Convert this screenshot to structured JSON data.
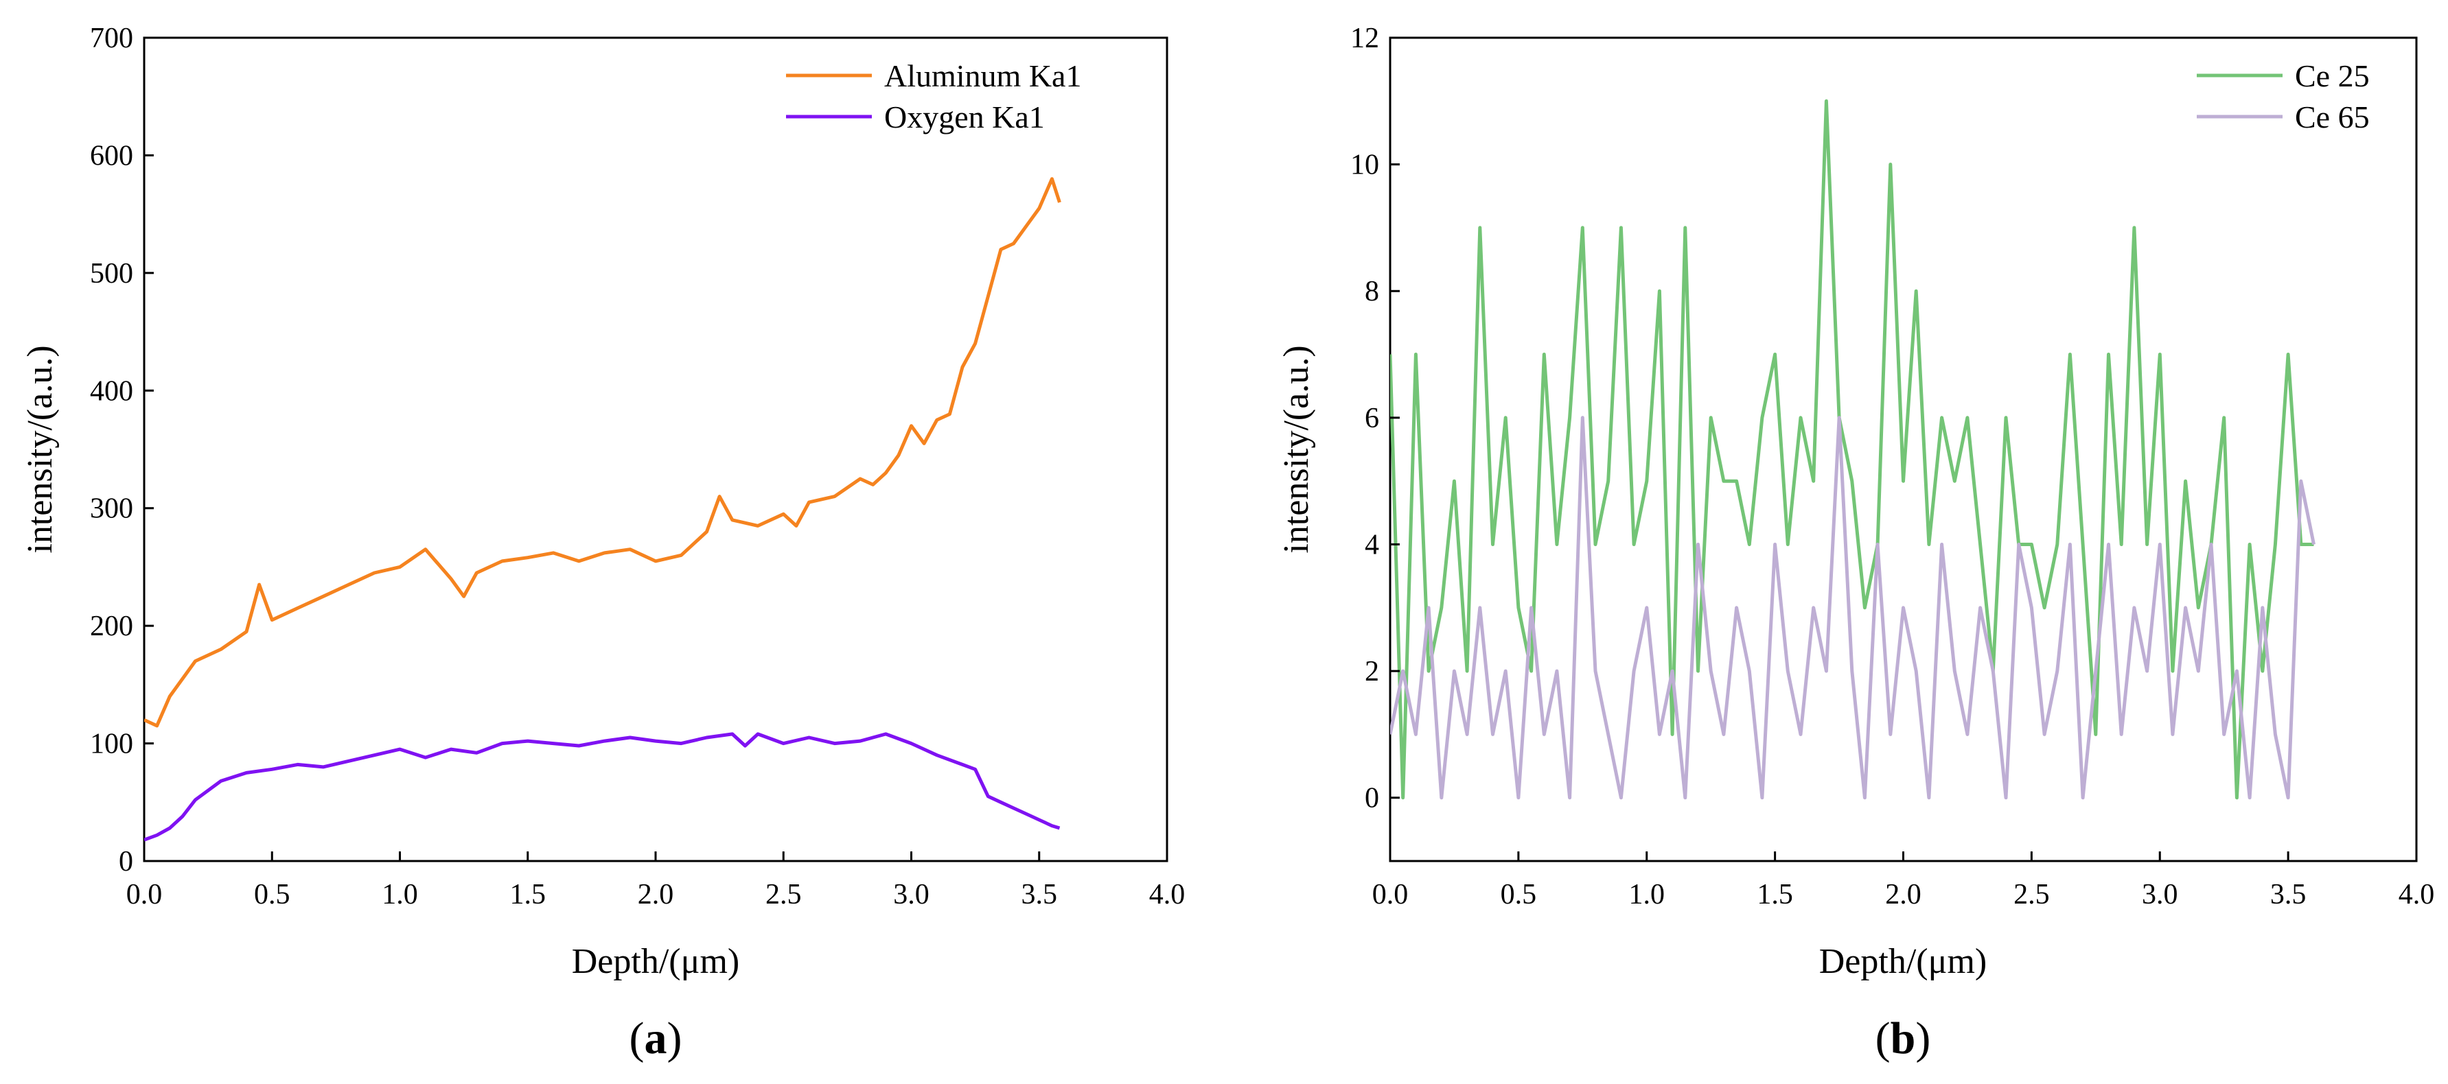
{
  "chart_data": [
    {
      "type": "line",
      "panel_label": {
        "open": "(",
        "letter": "a",
        "close": ")"
      },
      "xlabel": "Depth/(μm)",
      "ylabel": "intensity/(a.u.)",
      "xlim": [
        0,
        4.0
      ],
      "ylim": [
        0,
        700
      ],
      "xticks": [
        0,
        0.5,
        1.0,
        1.5,
        2.0,
        2.5,
        3.0,
        3.5,
        4.0
      ],
      "xtick_labels": [
        "0.0",
        "0.5",
        "1.0",
        "1.5",
        "2.0",
        "2.5",
        "3.0",
        "3.5",
        "4.0"
      ],
      "yticks": [
        0,
        100,
        200,
        300,
        400,
        500,
        600,
        700
      ],
      "ytick_labels": [
        "0",
        "100",
        "200",
        "300",
        "400",
        "500",
        "600",
        "700"
      ],
      "legend_position": "top-right",
      "series": [
        {
          "name": "Aluminum Ka1",
          "color": "#F5831F",
          "x": [
            0.0,
            0.05,
            0.1,
            0.2,
            0.3,
            0.4,
            0.45,
            0.5,
            0.6,
            0.7,
            0.8,
            0.9,
            1.0,
            1.1,
            1.2,
            1.25,
            1.3,
            1.4,
            1.5,
            1.6,
            1.7,
            1.8,
            1.9,
            2.0,
            2.1,
            2.2,
            2.25,
            2.3,
            2.4,
            2.5,
            2.55,
            2.6,
            2.7,
            2.8,
            2.85,
            2.9,
            2.95,
            3.0,
            3.05,
            3.1,
            3.15,
            3.2,
            3.25,
            3.3,
            3.35,
            3.4,
            3.45,
            3.5,
            3.55,
            3.58
          ],
          "values": [
            120,
            115,
            140,
            170,
            180,
            195,
            235,
            205,
            215,
            225,
            235,
            245,
            250,
            265,
            240,
            225,
            245,
            255,
            258,
            262,
            255,
            262,
            265,
            255,
            260,
            280,
            310,
            290,
            285,
            295,
            285,
            305,
            310,
            325,
            320,
            330,
            345,
            370,
            355,
            375,
            380,
            420,
            440,
            480,
            520,
            525,
            540,
            555,
            580,
            560
          ]
        },
        {
          "name": "Oxygen Ka1",
          "color": "#7F12F2",
          "x": [
            0.0,
            0.05,
            0.1,
            0.15,
            0.2,
            0.3,
            0.4,
            0.5,
            0.6,
            0.7,
            0.8,
            0.9,
            1.0,
            1.1,
            1.2,
            1.3,
            1.4,
            1.5,
            1.6,
            1.7,
            1.8,
            1.9,
            2.0,
            2.1,
            2.2,
            2.3,
            2.35,
            2.4,
            2.5,
            2.6,
            2.7,
            2.8,
            2.9,
            3.0,
            3.05,
            3.1,
            3.2,
            3.25,
            3.3,
            3.35,
            3.4,
            3.45,
            3.5,
            3.55,
            3.58
          ],
          "values": [
            18,
            22,
            28,
            38,
            52,
            68,
            75,
            78,
            82,
            80,
            85,
            90,
            95,
            88,
            95,
            92,
            100,
            102,
            100,
            98,
            102,
            105,
            102,
            100,
            105,
            108,
            98,
            108,
            100,
            105,
            100,
            102,
            108,
            100,
            95,
            90,
            82,
            78,
            55,
            50,
            45,
            40,
            35,
            30,
            28
          ]
        }
      ]
    },
    {
      "type": "line",
      "panel_label": {
        "open": "(",
        "letter": "b",
        "close": ")"
      },
      "xlabel": "Depth/(μm)",
      "ylabel": "intensity/(a.u.)",
      "xlim": [
        0,
        4.0
      ],
      "ylim": [
        -1,
        12
      ],
      "xticks": [
        0,
        0.5,
        1.0,
        1.5,
        2.0,
        2.5,
        3.0,
        3.5,
        4.0
      ],
      "xtick_labels": [
        "0.0",
        "0.5",
        "1.0",
        "1.5",
        "2.0",
        "2.5",
        "3.0",
        "3.5",
        "4.0"
      ],
      "yticks": [
        0,
        2,
        4,
        6,
        8,
        10,
        12
      ],
      "ytick_labels": [
        "0",
        "2",
        "4",
        "6",
        "8",
        "10",
        "12"
      ],
      "legend_position": "top-right",
      "series": [
        {
          "name": "Ce 25",
          "color": "#73C476",
          "x": [
            0.0,
            0.05,
            0.1,
            0.15,
            0.2,
            0.25,
            0.3,
            0.35,
            0.4,
            0.45,
            0.5,
            0.55,
            0.6,
            0.65,
            0.7,
            0.75,
            0.8,
            0.85,
            0.9,
            0.95,
            1.0,
            1.05,
            1.1,
            1.15,
            1.2,
            1.25,
            1.3,
            1.35,
            1.4,
            1.45,
            1.5,
            1.55,
            1.6,
            1.65,
            1.7,
            1.75,
            1.8,
            1.85,
            1.9,
            1.95,
            2.0,
            2.05,
            2.1,
            2.15,
            2.2,
            2.25,
            2.3,
            2.35,
            2.4,
            2.45,
            2.5,
            2.55,
            2.6,
            2.65,
            2.7,
            2.75,
            2.8,
            2.85,
            2.9,
            2.95,
            3.0,
            3.05,
            3.1,
            3.15,
            3.2,
            3.25,
            3.3,
            3.35,
            3.4,
            3.45,
            3.5,
            3.55,
            3.6
          ],
          "values": [
            7,
            0,
            7,
            2,
            3,
            5,
            2,
            9,
            4,
            6,
            3,
            2,
            7,
            4,
            6,
            9,
            4,
            5,
            9,
            4,
            5,
            8,
            1,
            9,
            2,
            6,
            5,
            5,
            4,
            6,
            7,
            4,
            6,
            5,
            11,
            6,
            5,
            3,
            4,
            10,
            5,
            8,
            4,
            6,
            5,
            6,
            4,
            2,
            6,
            4,
            4,
            3,
            4,
            7,
            4,
            1,
            7,
            4,
            9,
            4,
            7,
            2,
            5,
            3,
            4,
            6,
            0,
            4,
            2,
            4,
            7,
            4,
            4
          ]
        },
        {
          "name": "Ce 65",
          "color": "#BEAED4",
          "x": [
            0.0,
            0.05,
            0.1,
            0.15,
            0.2,
            0.25,
            0.3,
            0.35,
            0.4,
            0.45,
            0.5,
            0.55,
            0.6,
            0.65,
            0.7,
            0.75,
            0.8,
            0.85,
            0.9,
            0.95,
            1.0,
            1.05,
            1.1,
            1.15,
            1.2,
            1.25,
            1.3,
            1.35,
            1.4,
            1.45,
            1.5,
            1.55,
            1.6,
            1.65,
            1.7,
            1.75,
            1.8,
            1.85,
            1.9,
            1.95,
            2.0,
            2.05,
            2.1,
            2.15,
            2.2,
            2.25,
            2.3,
            2.35,
            2.4,
            2.45,
            2.5,
            2.55,
            2.6,
            2.65,
            2.7,
            2.75,
            2.8,
            2.85,
            2.9,
            2.95,
            3.0,
            3.05,
            3.1,
            3.15,
            3.2,
            3.25,
            3.3,
            3.35,
            3.4,
            3.45,
            3.5,
            3.55,
            3.6
          ],
          "values": [
            1,
            2,
            1,
            3,
            0,
            2,
            1,
            3,
            1,
            2,
            0,
            3,
            1,
            2,
            0,
            6,
            2,
            1,
            0,
            2,
            3,
            1,
            2,
            0,
            4,
            2,
            1,
            3,
            2,
            0,
            4,
            2,
            1,
            3,
            2,
            6,
            2,
            0,
            4,
            1,
            3,
            2,
            0,
            4,
            2,
            1,
            3,
            2,
            0,
            4,
            3,
            1,
            2,
            4,
            0,
            2,
            4,
            1,
            3,
            2,
            4,
            1,
            3,
            2,
            4,
            1,
            2,
            0,
            3,
            1,
            0,
            5,
            4
          ]
        }
      ]
    }
  ]
}
